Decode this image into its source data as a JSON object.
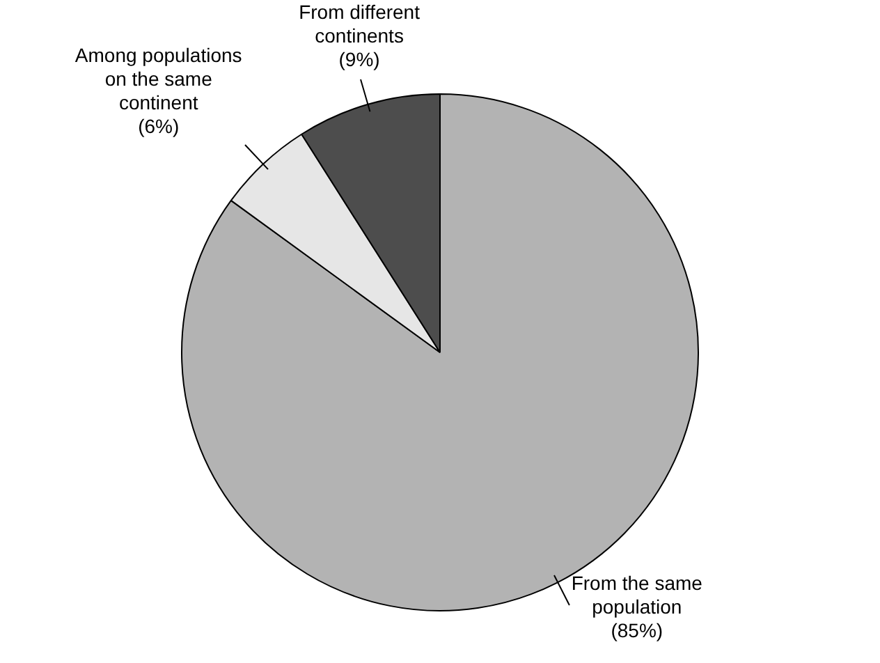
{
  "chart_data": {
    "type": "pie",
    "categories": [
      "From the same population",
      "Among populations on the same continent",
      "From different continents"
    ],
    "values": [
      85,
      6,
      9
    ],
    "colors": [
      "#b3b3b3",
      "#e6e6e6",
      "#4d4d4d"
    ],
    "value_labels": [
      "(85%)",
      "(6%)",
      "(9%)"
    ],
    "legend": false
  }
}
